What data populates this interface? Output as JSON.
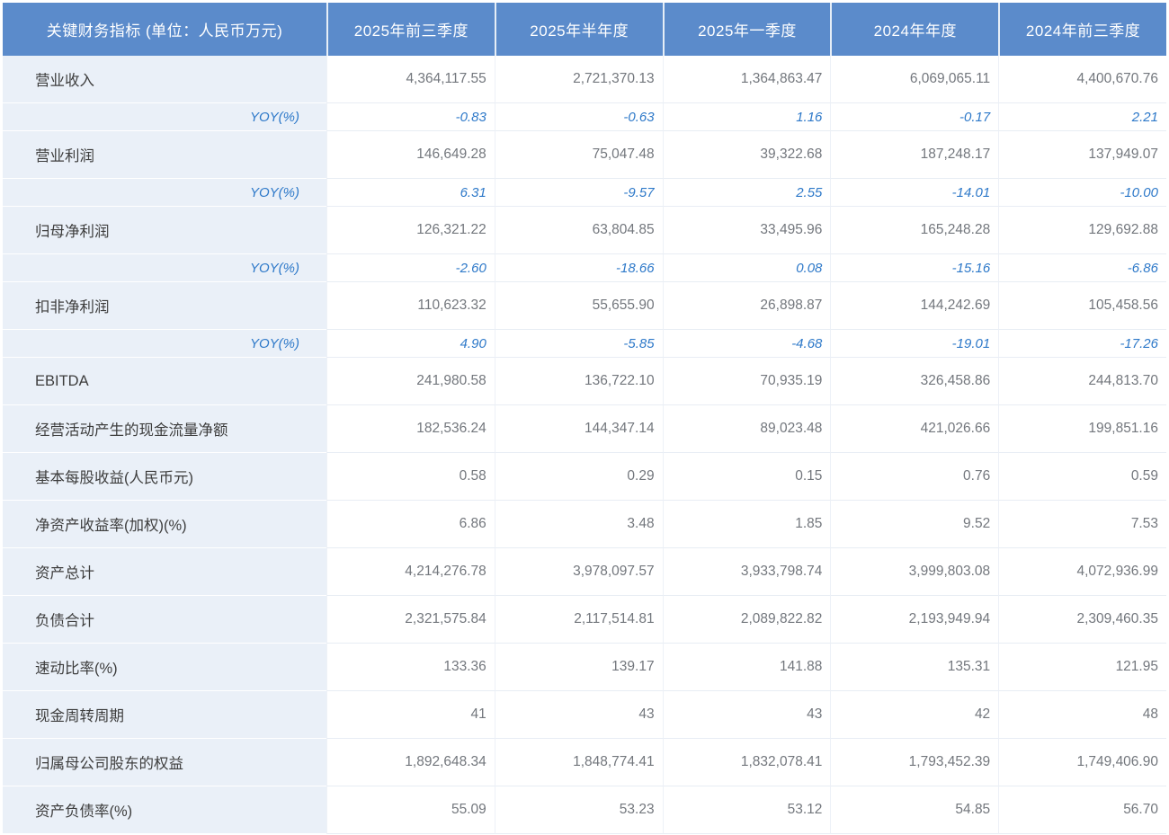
{
  "table": {
    "header": {
      "metric_label": "关键财务指标 (单位：人民币万元)",
      "periods": [
        "2025年前三季度",
        "2025年半年度",
        "2025年一季度",
        "2024年年度",
        "2024年前三季度"
      ]
    },
    "rows": [
      {
        "label": "营业收入",
        "type": "metric",
        "values": [
          "4,364,117.55",
          "2,721,370.13",
          "1,364,863.47",
          "6,069,065.11",
          "4,400,670.76"
        ]
      },
      {
        "label": "YOY(%)",
        "type": "yoy",
        "values": [
          "-0.83",
          "-0.63",
          "1.16",
          "-0.17",
          "2.21"
        ]
      },
      {
        "label": "营业利润",
        "type": "metric",
        "values": [
          "146,649.28",
          "75,047.48",
          "39,322.68",
          "187,248.17",
          "137,949.07"
        ]
      },
      {
        "label": "YOY(%)",
        "type": "yoy",
        "values": [
          "6.31",
          "-9.57",
          "2.55",
          "-14.01",
          "-10.00"
        ]
      },
      {
        "label": "归母净利润",
        "type": "metric",
        "values": [
          "126,321.22",
          "63,804.85",
          "33,495.96",
          "165,248.28",
          "129,692.88"
        ]
      },
      {
        "label": "YOY(%)",
        "type": "yoy",
        "values": [
          "-2.60",
          "-18.66",
          "0.08",
          "-15.16",
          "-6.86"
        ]
      },
      {
        "label": "扣非净利润",
        "type": "metric",
        "values": [
          "110,623.32",
          "55,655.90",
          "26,898.87",
          "144,242.69",
          "105,458.56"
        ]
      },
      {
        "label": "YOY(%)",
        "type": "yoy",
        "values": [
          "4.90",
          "-5.85",
          "-4.68",
          "-19.01",
          "-17.26"
        ]
      },
      {
        "label": "EBITDA",
        "type": "metric",
        "values": [
          "241,980.58",
          "136,722.10",
          "70,935.19",
          "326,458.86",
          "244,813.70"
        ]
      },
      {
        "label": "经营活动产生的现金流量净额",
        "type": "metric",
        "values": [
          "182,536.24",
          "144,347.14",
          "89,023.48",
          "421,026.66",
          "199,851.16"
        ]
      },
      {
        "label": "基本每股收益(人民币元)",
        "type": "metric",
        "values": [
          "0.58",
          "0.29",
          "0.15",
          "0.76",
          "0.59"
        ]
      },
      {
        "label": "净资产收益率(加权)(%)",
        "type": "metric",
        "values": [
          "6.86",
          "3.48",
          "1.85",
          "9.52",
          "7.53"
        ]
      },
      {
        "label": "资产总计",
        "type": "metric",
        "values": [
          "4,214,276.78",
          "3,978,097.57",
          "3,933,798.74",
          "3,999,803.08",
          "4,072,936.99"
        ]
      },
      {
        "label": "负债合计",
        "type": "metric",
        "values": [
          "2,321,575.84",
          "2,117,514.81",
          "2,089,822.82",
          "2,193,949.94",
          "2,309,460.35"
        ]
      },
      {
        "label": "速动比率(%)",
        "type": "metric",
        "values": [
          "133.36",
          "139.17",
          "141.88",
          "135.31",
          "121.95"
        ]
      },
      {
        "label": "现金周转周期",
        "type": "metric",
        "values": [
          "41",
          "43",
          "43",
          "42",
          "48"
        ]
      },
      {
        "label": "归属母公司股东的权益",
        "type": "metric",
        "values": [
          "1,892,648.34",
          "1,848,774.41",
          "1,832,078.41",
          "1,793,452.39",
          "1,749,406.90"
        ]
      },
      {
        "label": "资产负债率(%)",
        "type": "metric",
        "values": [
          "55.09",
          "53.23",
          "53.12",
          "54.85",
          "56.70"
        ]
      }
    ]
  },
  "chart_data": {
    "type": "table",
    "title": "关键财务指标 (单位：人民币万元)",
    "columns": [
      "关键财务指标 (单位：人民币万元)",
      "2025年前三季度",
      "2025年半年度",
      "2025年一季度",
      "2024年年度",
      "2024年前三季度"
    ],
    "rows": [
      [
        "营业收入",
        4364117.55,
        2721370.13,
        1364863.47,
        6069065.11,
        4400670.76
      ],
      [
        "营业收入 YOY(%)",
        -0.83,
        -0.63,
        1.16,
        -0.17,
        2.21
      ],
      [
        "营业利润",
        146649.28,
        75047.48,
        39322.68,
        187248.17,
        137949.07
      ],
      [
        "营业利润 YOY(%)",
        6.31,
        -9.57,
        2.55,
        -14.01,
        -10.0
      ],
      [
        "归母净利润",
        126321.22,
        63804.85,
        33495.96,
        165248.28,
        129692.88
      ],
      [
        "归母净利润 YOY(%)",
        -2.6,
        -18.66,
        0.08,
        -15.16,
        -6.86
      ],
      [
        "扣非净利润",
        110623.32,
        55655.9,
        26898.87,
        144242.69,
        105458.56
      ],
      [
        "扣非净利润 YOY(%)",
        4.9,
        -5.85,
        -4.68,
        -19.01,
        -17.26
      ],
      [
        "EBITDA",
        241980.58,
        136722.1,
        70935.19,
        326458.86,
        244813.7
      ],
      [
        "经营活动产生的现金流量净额",
        182536.24,
        144347.14,
        89023.48,
        421026.66,
        199851.16
      ],
      [
        "基本每股收益(人民币元)",
        0.58,
        0.29,
        0.15,
        0.76,
        0.59
      ],
      [
        "净资产收益率(加权)(%)",
        6.86,
        3.48,
        1.85,
        9.52,
        7.53
      ],
      [
        "资产总计",
        4214276.78,
        3978097.57,
        3933798.74,
        3999803.08,
        4072936.99
      ],
      [
        "负债合计",
        2321575.84,
        2117514.81,
        2089822.82,
        2193949.94,
        2309460.35
      ],
      [
        "速动比率(%)",
        133.36,
        139.17,
        141.88,
        135.31,
        121.95
      ],
      [
        "现金周转周期",
        41,
        43,
        43,
        42,
        48
      ],
      [
        "归属母公司股东的权益",
        1892648.34,
        1848774.41,
        1832078.41,
        1793452.39,
        1749406.9
      ],
      [
        "资产负债率(%)",
        55.09,
        53.23,
        53.12,
        54.85,
        56.7
      ]
    ]
  },
  "colors": {
    "header_bg": "#5B8BCB",
    "header_text": "#FFFFFF",
    "label_col_bg": "#EAF0F8",
    "label_text": "#3D3D3D",
    "value_text": "#73777D",
    "yoy_text": "#2E79C9",
    "grid_line": "#E8EDF4"
  }
}
